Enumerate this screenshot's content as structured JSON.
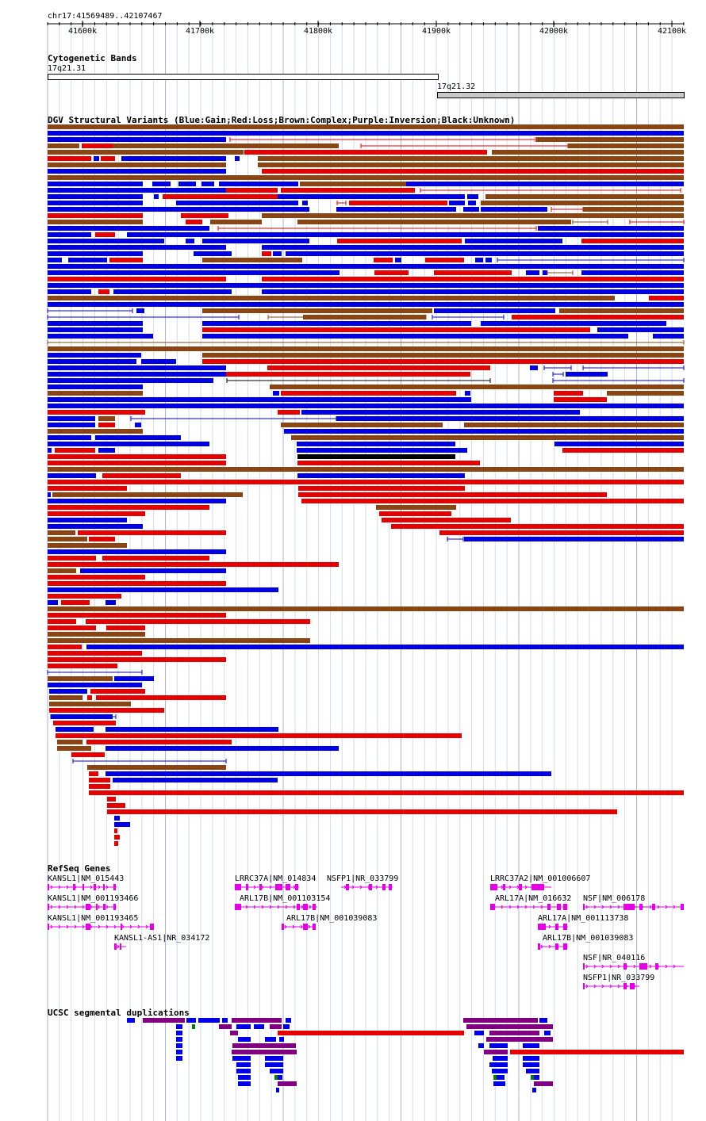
{
  "ruler": {
    "location": "chr17:41569489..42107467",
    "ticks": [
      "41600k",
      "41700k",
      "41800k",
      "41900k",
      "42000k",
      "42100k"
    ]
  },
  "cytobands": {
    "title": "Cytogenetic Bands",
    "bands": [
      "17q21.31",
      "17q21.32"
    ]
  },
  "dgv": {
    "title": "DGV Structural Variants (Blue:Gain;Red:Loss;Brown:Complex;Purple:Inversion;Black:Unknown)",
    "colors": {
      "gain": "#0000e6",
      "loss": "#e60000",
      "complex": "#8b4513",
      "unknown": "#000000"
    }
  },
  "refseq": {
    "title": "RefSeq Genes",
    "genes": [
      {
        "label": "KANSL1|NM_015443"
      },
      {
        "label": "KANSL1|NM_001193466"
      },
      {
        "label": "KANSL1|NM_001193465"
      },
      {
        "label": "KANSL1-AS1|NR_034172"
      },
      {
        "label": "LRRC37A|NM_014834"
      },
      {
        "label": "NSFP1|NR_033799"
      },
      {
        "label": "ARL17B|NM_001103154"
      },
      {
        "label": "ARL17B|NM_001039083"
      },
      {
        "label": "LRRC37A2|NM_001006607"
      },
      {
        "label": "ARL17A|NM_016632"
      },
      {
        "label": "NSF|NM_006178"
      },
      {
        "label": "ARL17A|NM_001113738"
      },
      {
        "label": "ARL17B|NM_001039083"
      },
      {
        "label": "NSF|NR_040116"
      },
      {
        "label": "NSFP1|NR_033799"
      }
    ],
    "color": "#e600e6"
  },
  "segdups": {
    "title": "UCSC segmental duplications",
    "colors": {
      "blue": "#0000e6",
      "purple": "#800080",
      "red": "#e60000",
      "green": "#008000"
    }
  }
}
